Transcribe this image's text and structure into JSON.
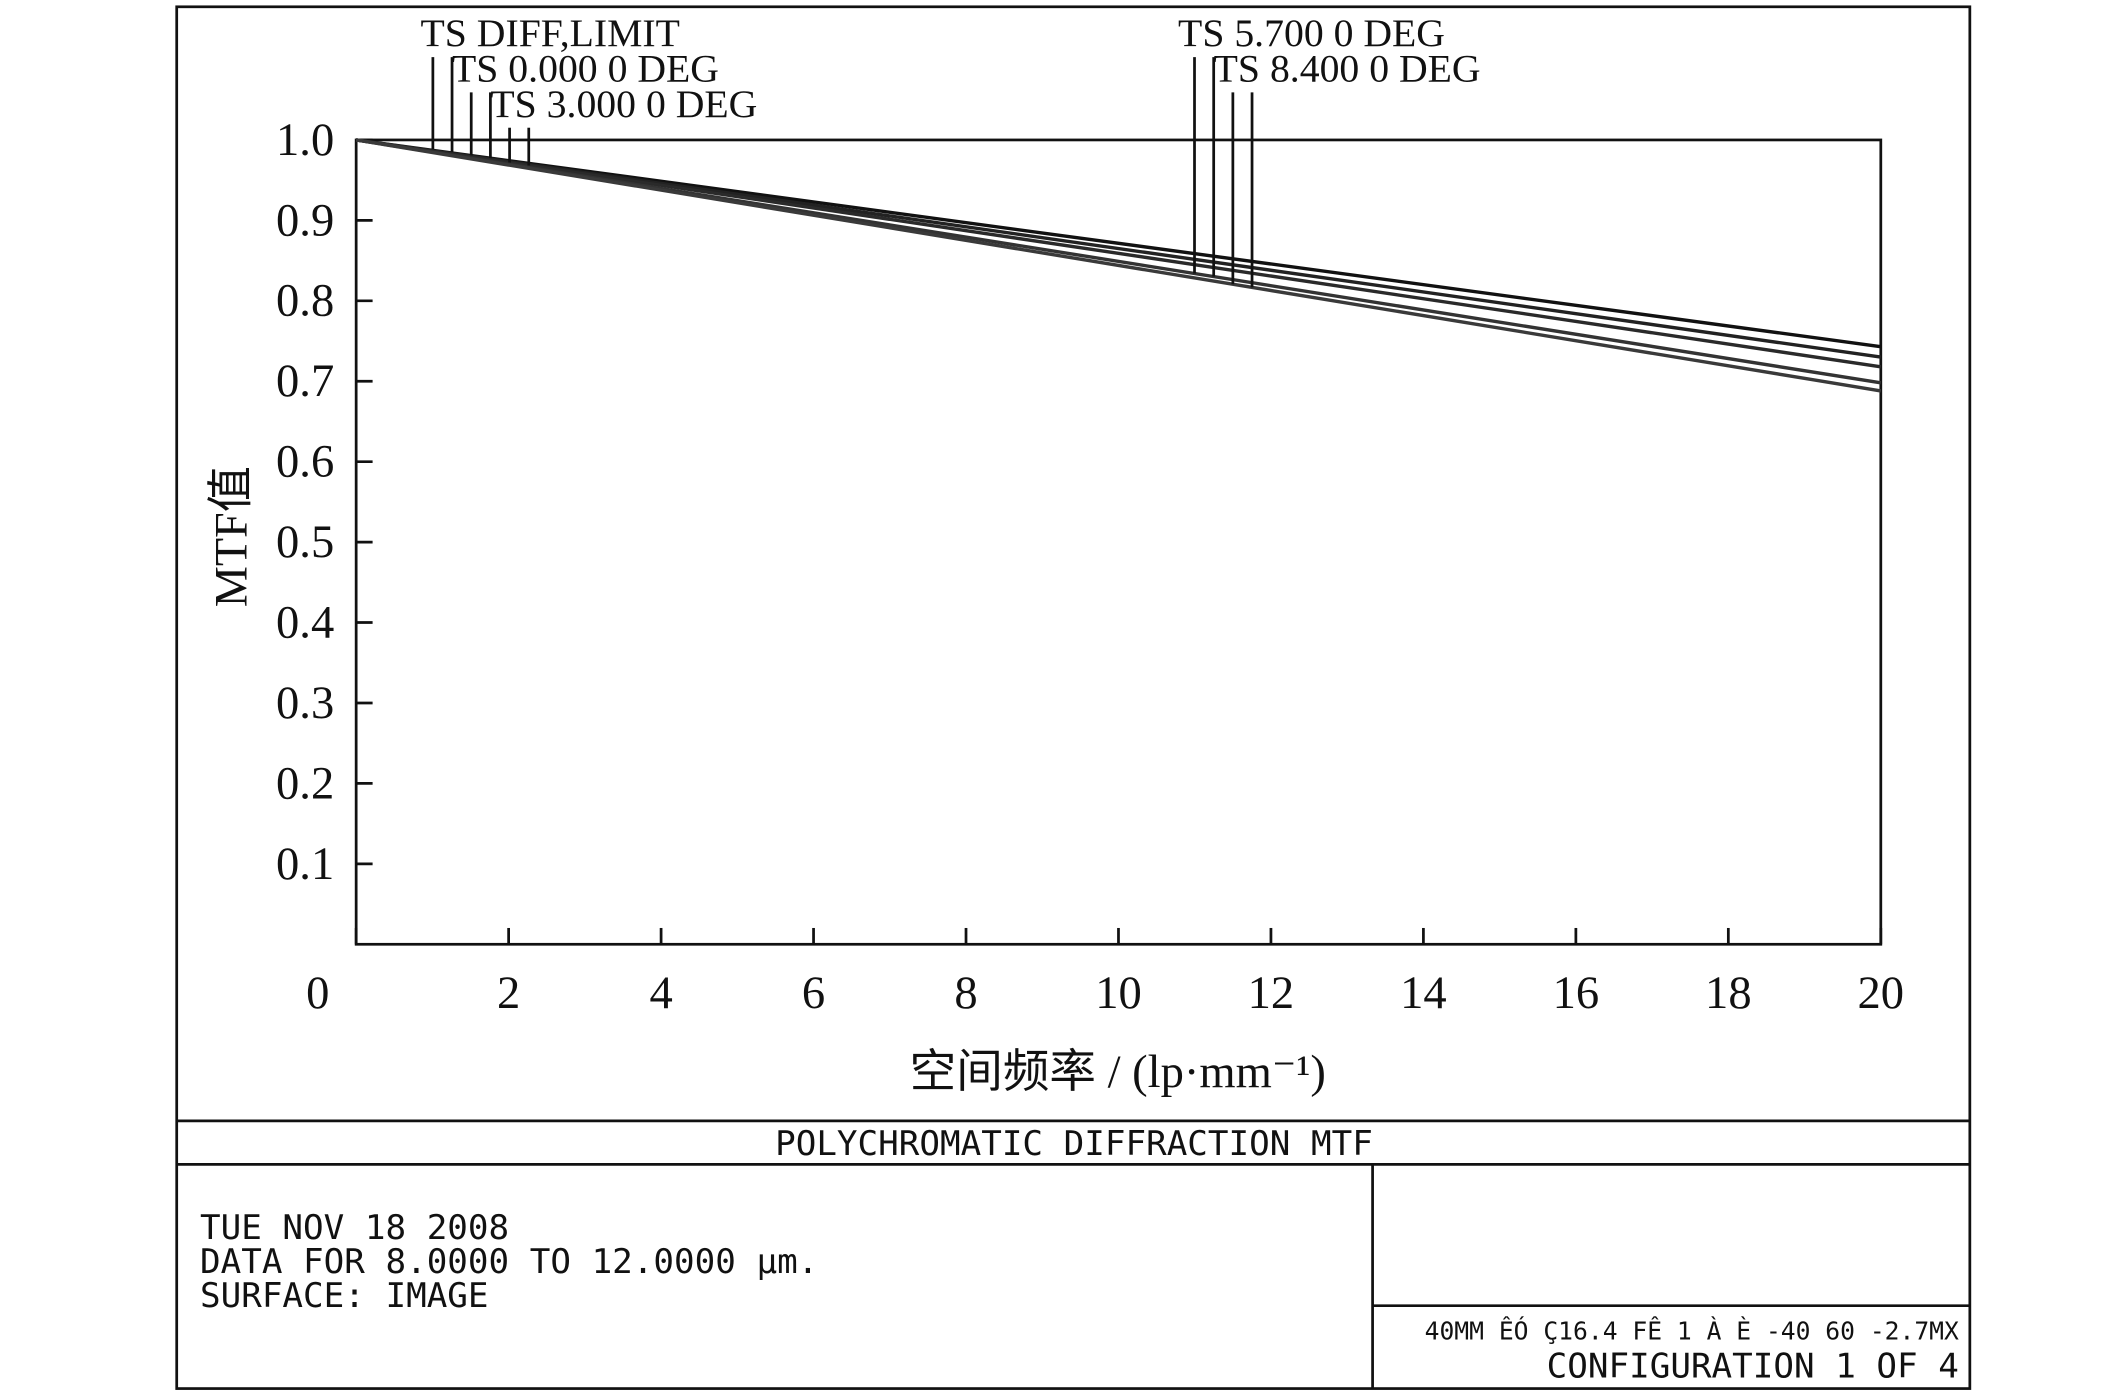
{
  "chart_data": {
    "type": "line",
    "title": "POLYCHROMATIC DIFFRACTION MTF",
    "xlabel": "空间频率 / (lp·mm⁻¹)",
    "ylabel": "MTF值",
    "x": [
      0,
      20
    ],
    "series": [
      {
        "name": "TS DIFF,LIMIT",
        "color": "#111111",
        "values": [
          1,
          0.743
        ]
      },
      {
        "name": "TS 0.000 0 DEG",
        "color": "#222222",
        "values": [
          1,
          0.73
        ]
      },
      {
        "name": "TS 3.000 0 DEG",
        "color": "#2a2a2a",
        "values": [
          1,
          0.718
        ]
      },
      {
        "name": "TS 5.700 0 DEG",
        "color": "#333333",
        "values": [
          1,
          0.698
        ]
      },
      {
        "name": "TS 8.400 0 DEG",
        "color": "#3a3a3a",
        "values": [
          1,
          0.688
        ]
      }
    ],
    "xlim": [
      0,
      20
    ],
    "xticks": [
      0,
      2,
      4,
      6,
      8,
      10,
      12,
      14,
      16,
      18,
      20
    ],
    "ylim": [
      0,
      1
    ],
    "yticks": [
      0.1,
      0.2,
      0.3,
      0.4,
      0.5,
      0.6,
      0.7,
      0.8,
      0.9,
      {
        "value": 1,
        "label": "1.0"
      }
    ],
    "grid": false,
    "footer_lines": [
      "TUE NOV 18 2008",
      "DATA FOR 8.0000 TO 12.0000 µm.",
      "SURFACE: IMAGE"
    ],
    "config_info": "40MM ÊÓ Ç16.4  FÊ 1  À È  -40  60 -2.7MX",
    "configuration": "CONFIGURATION 1 OF 4"
  }
}
